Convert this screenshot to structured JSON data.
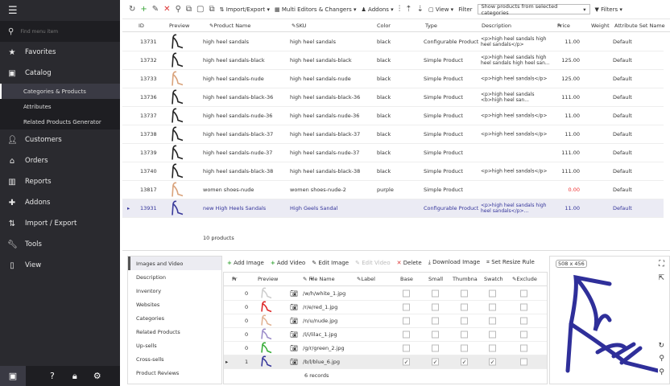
{
  "sidebar": {
    "search_placeholder": "Find menu item",
    "items": [
      {
        "label": "Favorites",
        "icon": "star-icon"
      },
      {
        "label": "Catalog",
        "icon": "catalog-icon"
      }
    ],
    "catalog_sub": [
      "Categories & Products",
      "Attributes",
      "Related Products Generator"
    ],
    "items2": [
      {
        "label": "Customers",
        "icon": "user-icon"
      },
      {
        "label": "Orders",
        "icon": "basket-icon"
      },
      {
        "label": "Reports",
        "icon": "chart-icon"
      },
      {
        "label": "Addons",
        "icon": "puzzle-icon"
      },
      {
        "label": "Import / Export",
        "icon": "arrows-icon"
      },
      {
        "label": "Tools",
        "icon": "wrench-icon"
      },
      {
        "label": "View",
        "icon": "view-icon"
      }
    ]
  },
  "toolbar": {
    "import_export": "Import/Export",
    "multi_editors": "Multi Editors & Changers",
    "addons": "Addons",
    "view": "View",
    "filter_label": "Filter",
    "filter_value": "Show products from selected categories",
    "filters": "Filters"
  },
  "grid": {
    "headers": {
      "id": "ID",
      "preview": "Preview",
      "name": "Product Name",
      "sku": "SKU",
      "color": "Color",
      "type": "Type",
      "description": "Description",
      "price": "Price",
      "weight": "Weight",
      "attr_set": "Attribute Set Name"
    },
    "rows": [
      {
        "id": "13731",
        "name": "high heel sandals",
        "sku": "high heel sandals",
        "color": "black",
        "type": "Configurable Product",
        "description": "<p>high heel sandals high heel sandals</p>",
        "price": "11.00",
        "attr_set": "Default",
        "shoe": "#222"
      },
      {
        "id": "13732",
        "name": "high heel sandals-black",
        "sku": "high heel sandals-black",
        "color": "black",
        "type": "Simple Product",
        "description": "<p>high heel sandals high heel sandals high heel san...",
        "price": "125.00",
        "attr_set": "Default",
        "shoe": "#222"
      },
      {
        "id": "13733",
        "name": "high heel sandals-nude",
        "sku": "high heel sandals-nude",
        "color": "black",
        "type": "Simple Product",
        "description": "<p>high heel sandals</p>",
        "price": "125.00",
        "attr_set": "Default",
        "shoe": "#d9a27a"
      },
      {
        "id": "13736",
        "name": "high heel sandals-black-36",
        "sku": "high heel sandals-black-36",
        "color": "black",
        "type": "Simple Product",
        "description": "<p>high heel sandals <b>high heel san...",
        "price": "111.00",
        "attr_set": "Default",
        "shoe": "#222"
      },
      {
        "id": "13737",
        "name": "high heel sandals-nude-36",
        "sku": "high heel sandals-nude-36",
        "color": "black",
        "type": "Simple Product",
        "description": "<p>high heel sandals</p>",
        "price": "11.00",
        "attr_set": "Default",
        "shoe": "#222"
      },
      {
        "id": "13738",
        "name": "high heel sandals-black-37",
        "sku": "high heel sandals-black-37",
        "color": "black",
        "type": "Simple Product",
        "description": "<p>high heel sandals</p>",
        "price": "11.00",
        "attr_set": "Default",
        "shoe": "#222"
      },
      {
        "id": "13739",
        "name": "high heel sandals-nude-37",
        "sku": "high heel sandals-nude-37",
        "color": "black",
        "type": "Simple Product",
        "description": "",
        "price": "111.00",
        "attr_set": "Default",
        "shoe": "#222"
      },
      {
        "id": "13740",
        "name": "high heel sandals-black-38",
        "sku": "high heel sandals-black-38",
        "color": "black",
        "type": "Simple Product",
        "description": "<p>high heel sandals</p>",
        "price": "111.00",
        "attr_set": "Default",
        "shoe": "#222"
      },
      {
        "id": "13817",
        "name": "women shoes-nude",
        "sku": "women shoes-nude-2",
        "color": "purple",
        "type": "Simple Product",
        "description": "",
        "price": "0.00",
        "attr_set": "Default",
        "shoe": "#d9a27a"
      },
      {
        "id": "13931",
        "name": "new High Heels Sandals",
        "sku": "High Geels Sandal",
        "color": "",
        "type": "Configurable Product",
        "description": "<p>high heel sandals high heel sandals</p>...",
        "price": "11.00",
        "attr_set": "Default",
        "shoe": "#3a3a9a"
      }
    ],
    "footer": "10 products"
  },
  "bottom": {
    "tabs": [
      "Images and Video",
      "Description",
      "Inventory",
      "Websites",
      "Categories",
      "Related Products",
      "Up-sells",
      "Cross-sells",
      "Product Reviews"
    ],
    "toolbar": {
      "add_image": "Add Image",
      "add_video": "Add Video",
      "edit_image": "Edit Image",
      "edit_video": "Edit Video",
      "delete": "Delete",
      "download": "Download Image",
      "resize": "Set Resize Rule"
    },
    "headers": {
      "pos": "Pr",
      "preview": "Preview",
      "file": "File Name",
      "label": "Label",
      "base": "Base",
      "small": "Small",
      "thumb": "Thumbna",
      "swatch": "Swatch",
      "exclude": "Exclude"
    },
    "rows": [
      {
        "pos": "0",
        "file": "/w/h/white_1.jpg",
        "color": "#ccc",
        "checks": [
          false,
          false,
          false,
          false,
          false
        ]
      },
      {
        "pos": "0",
        "file": "/r/e/red_1.jpg",
        "color": "#d22",
        "checks": [
          false,
          false,
          false,
          false,
          false
        ]
      },
      {
        "pos": "0",
        "file": "/n/u/nude.jpg",
        "color": "#e0b090",
        "checks": [
          false,
          false,
          false,
          false,
          false
        ]
      },
      {
        "pos": "0",
        "file": "/l/i/lilac_1.jpg",
        "color": "#9a8ac8",
        "checks": [
          false,
          false,
          false,
          false,
          false
        ]
      },
      {
        "pos": "0",
        "file": "/g/r/green_2.jpg",
        "color": "#3a3",
        "checks": [
          false,
          false,
          false,
          false,
          false
        ]
      },
      {
        "pos": "1",
        "file": "/b/l/blue_6.jpg",
        "color": "#33339a",
        "checks": [
          true,
          true,
          true,
          true,
          false
        ]
      }
    ],
    "footer": "6 records",
    "preview_size": "508 x 456"
  },
  "colors": {
    "sidebar": "#2a2a2f",
    "selected_row": "#ebebf4",
    "accent_green": "#3aa63a",
    "delete_red": "#d33",
    "price_zero": "#e33"
  }
}
